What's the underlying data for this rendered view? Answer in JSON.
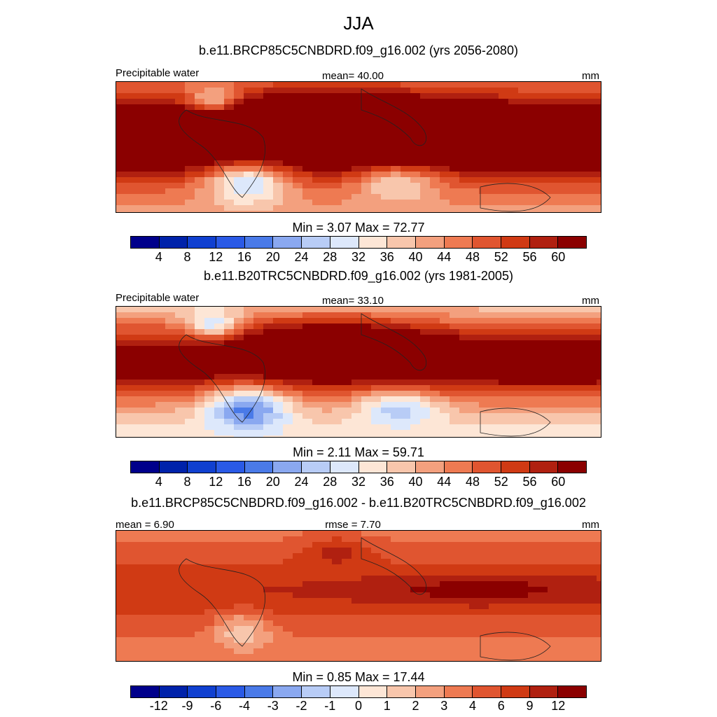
{
  "title": "JJA",
  "palette": [
    "#00008b",
    "#0022aa",
    "#1040d0",
    "#2a5ae6",
    "#4a7ae8",
    "#8aa8f0",
    "#b8ccf6",
    "#dde8fb",
    "#fde6d6",
    "#f8c6ac",
    "#f3a07e",
    "#ee7a52",
    "#e05530",
    "#d03a14",
    "#b02010",
    "#8b0000"
  ],
  "panels": [
    {
      "title": "b.e11.BRCP85C5CNBDRD.f09_g16.002 (yrs 2056-2080)",
      "left_label": "Precipitable water",
      "center_label": "mean=  40.00",
      "right_label": "mm",
      "min_max": "Min =   3.07 Max =  72.77",
      "ticks": [
        "4",
        "8",
        "12",
        "16",
        "20",
        "24",
        "28",
        "32",
        "36",
        "40",
        "44",
        "48",
        "52",
        "56",
        "60"
      ],
      "field": "future"
    },
    {
      "title": "b.e11.B20TRC5CNBDRD.f09_g16.002 (yrs 1981-2005)",
      "left_label": "Precipitable water",
      "center_label": "mean=  33.10",
      "right_label": "mm",
      "min_max": "Min =   2.11 Max =  59.71",
      "ticks": [
        "4",
        "8",
        "12",
        "16",
        "20",
        "24",
        "28",
        "32",
        "36",
        "40",
        "44",
        "48",
        "52",
        "56",
        "60"
      ],
      "field": "historical"
    },
    {
      "title": "b.e11.BRCP85C5CNBDRD.f09_g16.002 - b.e11.B20TRC5CNBDRD.f09_g16.002",
      "left_label": "mean =   6.90",
      "center_label": "rmse =   7.70",
      "right_label": "mm",
      "min_max": "Min =   0.85 Max =  17.44",
      "ticks": [
        "-12",
        "-9",
        "-6",
        "-4",
        "-3",
        "-2",
        "-1",
        "0",
        "1",
        "2",
        "3",
        "4",
        "6",
        "9",
        "12"
      ],
      "field": "difference"
    }
  ]
}
